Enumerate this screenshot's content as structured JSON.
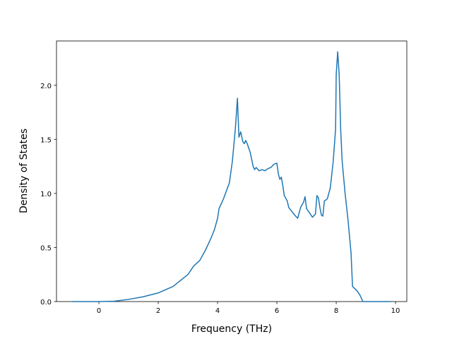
{
  "chart_data": {
    "type": "line",
    "xlabel": "Frequency (THz)",
    "ylabel": "Density of States",
    "color": "#1f77b4",
    "x": [
      -0.9,
      0,
      0.5,
      1,
      1.5,
      2,
      2.5,
      3,
      3.2,
      3.4,
      3.6,
      3.8,
      3.9,
      4.0,
      4.05,
      4.2,
      4.4,
      4.5,
      4.6,
      4.65,
      4.67,
      4.72,
      4.78,
      4.85,
      4.9,
      4.95,
      5.0,
      5.1,
      5.2,
      5.25,
      5.3,
      5.4,
      5.5,
      5.6,
      5.7,
      5.8,
      5.9,
      6.0,
      6.05,
      6.1,
      6.15,
      6.2,
      6.25,
      6.35,
      6.4,
      6.6,
      6.7,
      6.8,
      6.9,
      6.95,
      7.0,
      7.1,
      7.2,
      7.3,
      7.35,
      7.4,
      7.45,
      7.5,
      7.55,
      7.6,
      7.7,
      7.8,
      7.9,
      7.98,
      8.0,
      8.05,
      8.1,
      8.15,
      8.2,
      8.3,
      8.4,
      8.5,
      8.55,
      8.7,
      8.8,
      8.9,
      9.85
    ],
    "values": [
      0,
      0,
      0.003,
      0.02,
      0.045,
      0.08,
      0.14,
      0.25,
      0.33,
      0.38,
      0.48,
      0.6,
      0.67,
      0.77,
      0.86,
      0.95,
      1.1,
      1.3,
      1.6,
      1.8,
      1.88,
      1.52,
      1.57,
      1.48,
      1.46,
      1.49,
      1.46,
      1.38,
      1.25,
      1.22,
      1.24,
      1.21,
      1.22,
      1.21,
      1.23,
      1.24,
      1.27,
      1.28,
      1.18,
      1.13,
      1.15,
      1.07,
      0.98,
      0.93,
      0.87,
      0.8,
      0.77,
      0.87,
      0.92,
      0.97,
      0.86,
      0.82,
      0.78,
      0.81,
      0.98,
      0.96,
      0.87,
      0.8,
      0.79,
      0.93,
      0.95,
      1.05,
      1.3,
      1.6,
      2.1,
      2.31,
      2.1,
      1.6,
      1.3,
      1.0,
      0.75,
      0.45,
      0.14,
      0.1,
      0.06,
      0,
      0
    ],
    "xlim": [
      -1.43,
      10.38
    ],
    "xticks": [
      0,
      2,
      4,
      6,
      8,
      10
    ],
    "ylim": [
      0,
      2.41
    ],
    "yticks": [
      {
        "value": 0,
        "label": "0.0"
      },
      {
        "value": 0.5,
        "label": "0.5"
      },
      {
        "value": 1,
        "label": "1.0"
      },
      {
        "value": 1.5,
        "label": "1.5"
      },
      {
        "value": 2,
        "label": "2.0"
      }
    ]
  }
}
